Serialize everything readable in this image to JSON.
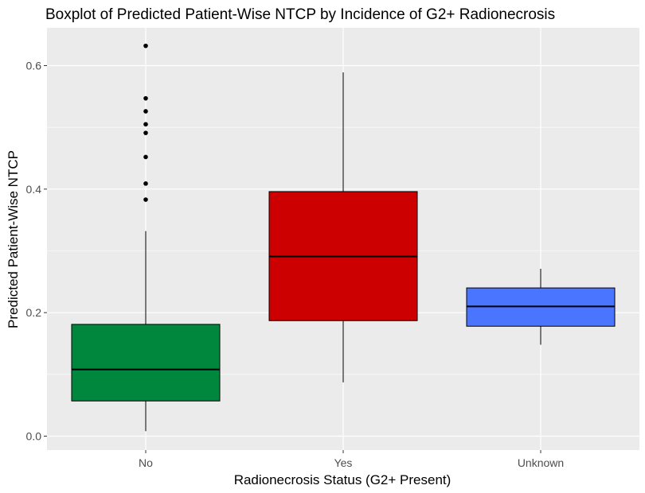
{
  "chart_data": {
    "type": "boxplot",
    "title": "Boxplot of Predicted Patient-Wise NTCP by Incidence of G2+ Radionecrosis",
    "xlabel": "Radionecrosis Status (G2+ Present)",
    "ylabel": "Predicted Patient-Wise NTCP",
    "ylim": [
      -0.02,
      0.65
    ],
    "yticks": [
      0.0,
      0.2,
      0.4,
      0.6
    ],
    "ytick_labels": [
      "0.0",
      "0.2",
      "0.4",
      "0.6"
    ],
    "grid": true,
    "categories": [
      "No",
      "Yes",
      "Unknown"
    ],
    "boxes": [
      {
        "category": "No",
        "color": "#00873E",
        "whisker_low": 0.008,
        "q1": 0.057,
        "median": 0.108,
        "q3": 0.181,
        "whisker_high": 0.332,
        "outliers": [
          0.383,
          0.409,
          0.452,
          0.491,
          0.505,
          0.526,
          0.547,
          0.632
        ]
      },
      {
        "category": "Yes",
        "color": "#CC0000",
        "whisker_low": 0.087,
        "q1": 0.187,
        "median": 0.291,
        "q3": 0.396,
        "whisker_high": 0.589,
        "outliers": []
      },
      {
        "category": "Unknown",
        "color": "#4A75FF",
        "whisker_low": 0.148,
        "q1": 0.178,
        "median": 0.21,
        "q3": 0.24,
        "whisker_high": 0.271,
        "outliers": []
      }
    ]
  }
}
